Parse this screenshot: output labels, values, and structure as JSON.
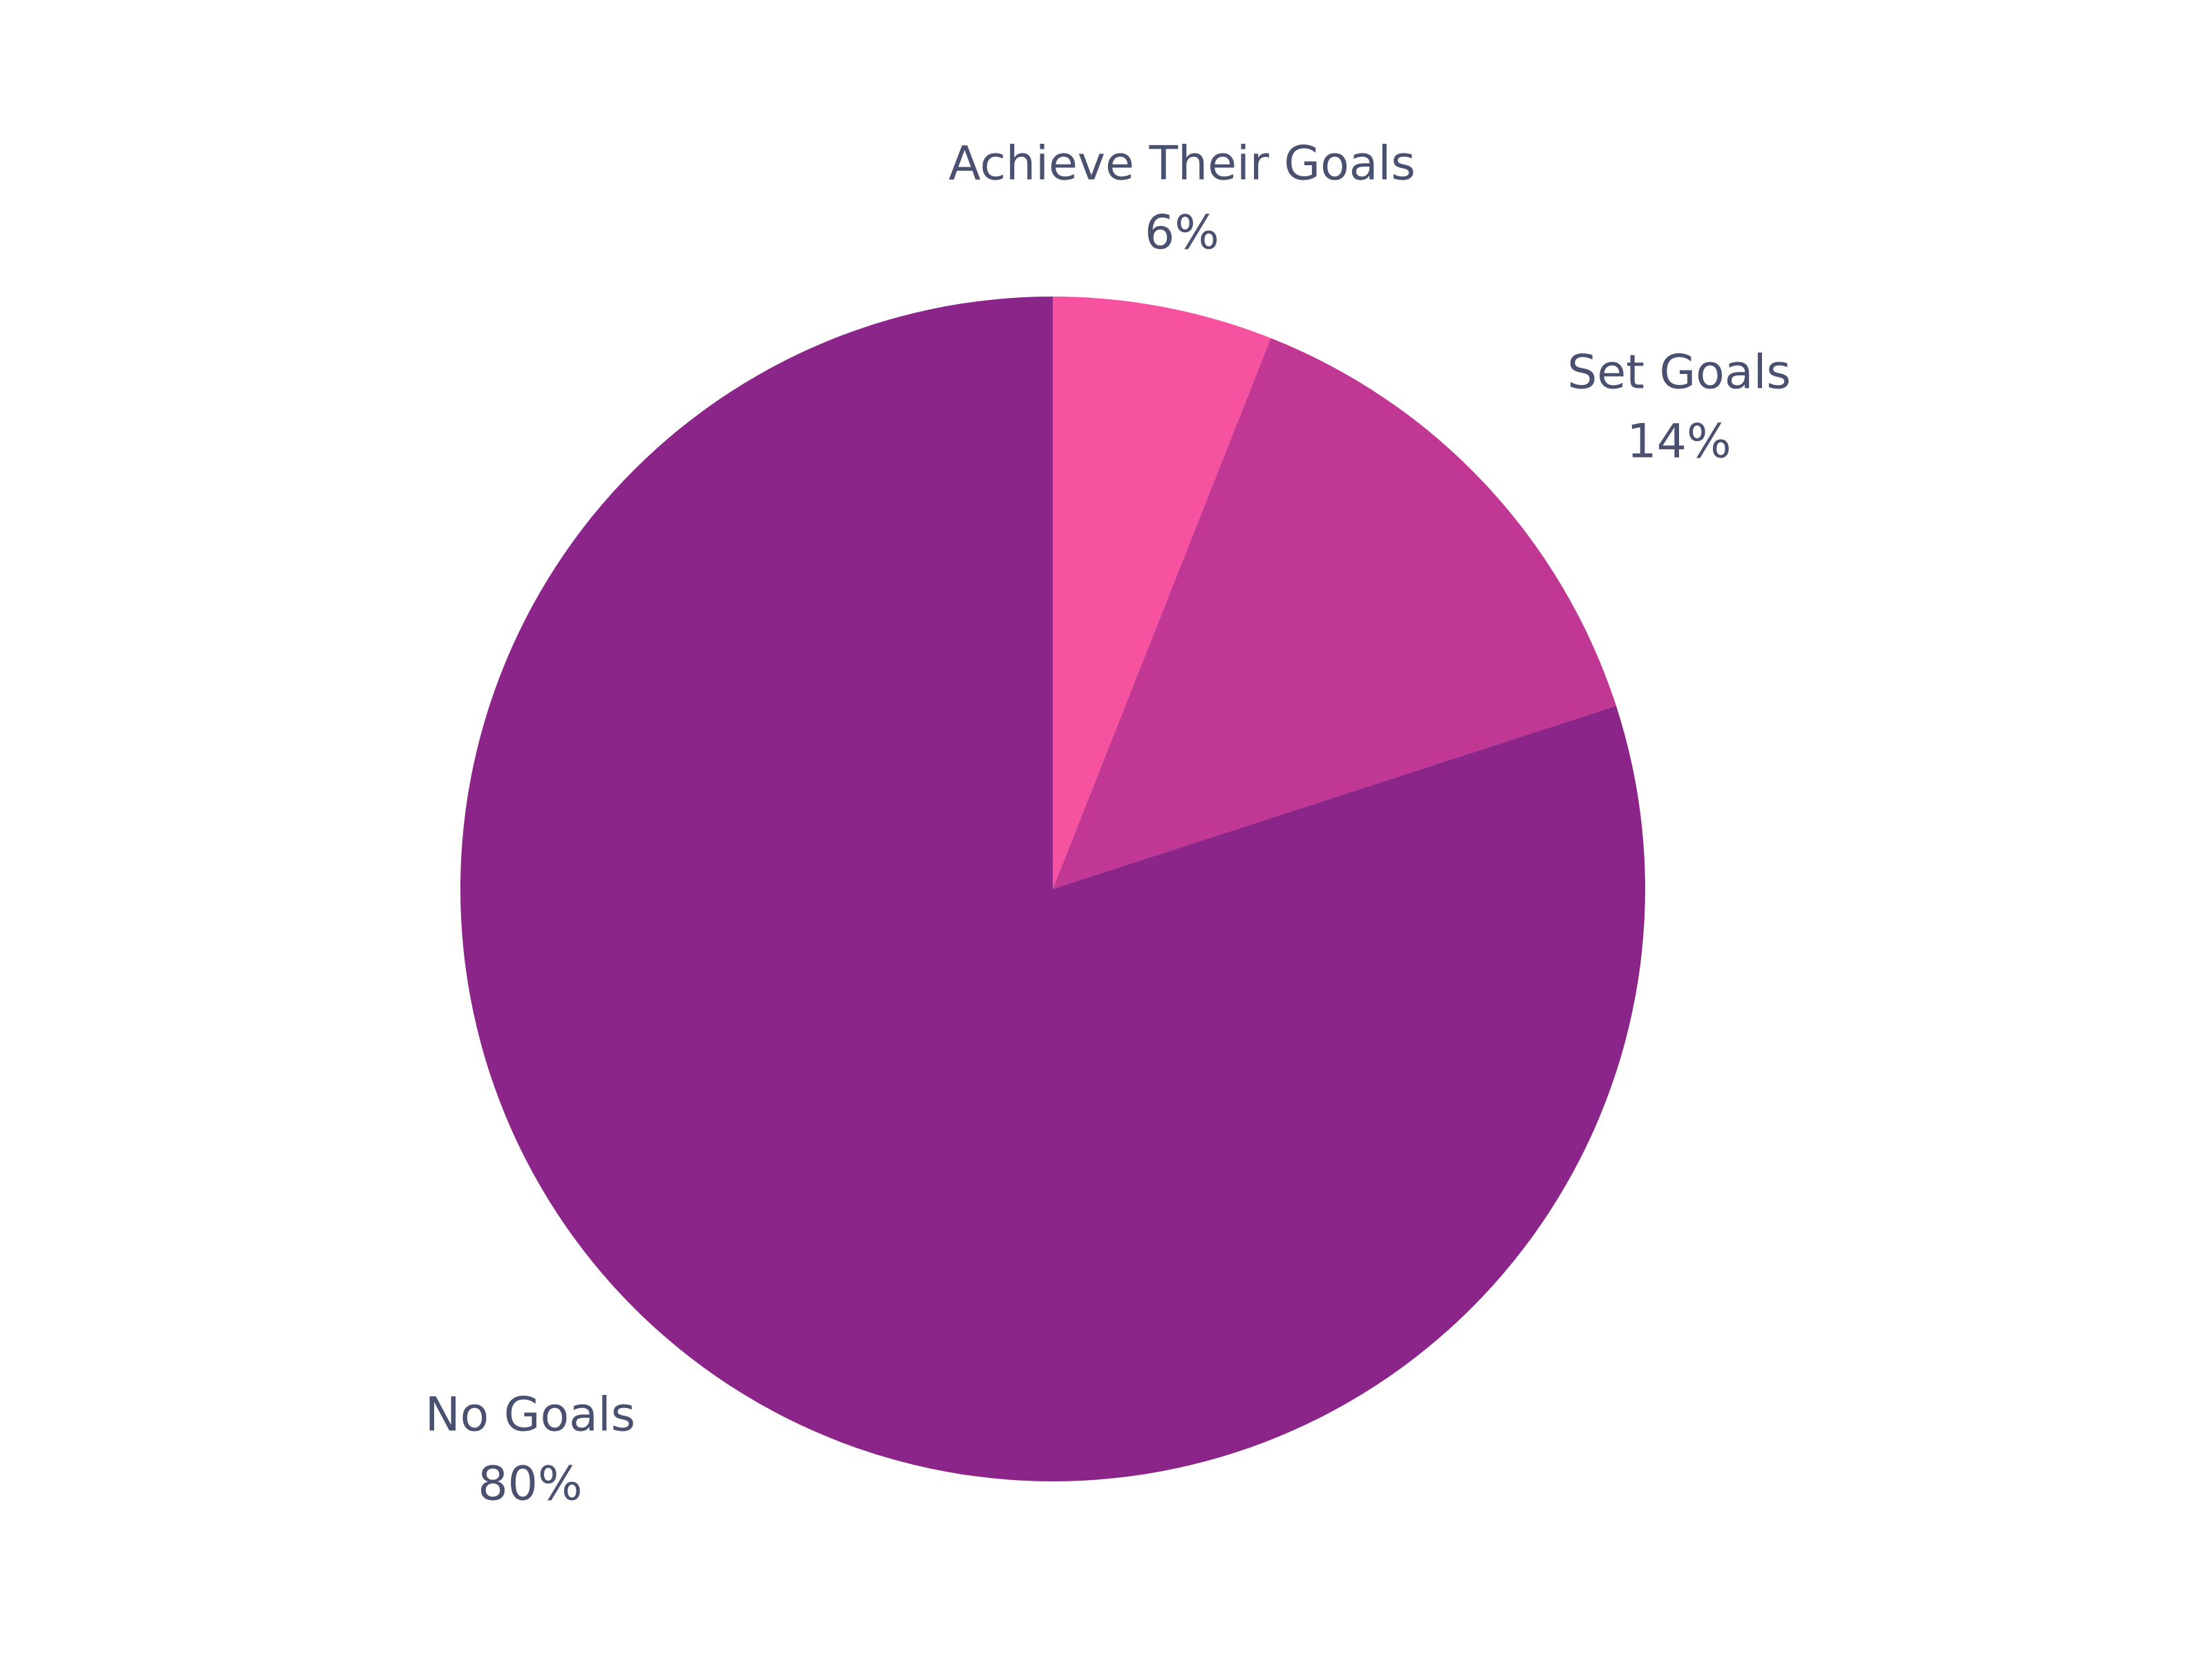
{
  "chart_data": {
    "type": "pie",
    "categories": [
      "Achieve Their Goals",
      "Set Goals",
      "No Goals"
    ],
    "values": [
      6,
      14,
      80
    ],
    "value_labels": [
      "6%",
      "14%",
      "80%"
    ],
    "colors": [
      "#f7529f",
      "#c03894",
      "#8b2589"
    ]
  }
}
